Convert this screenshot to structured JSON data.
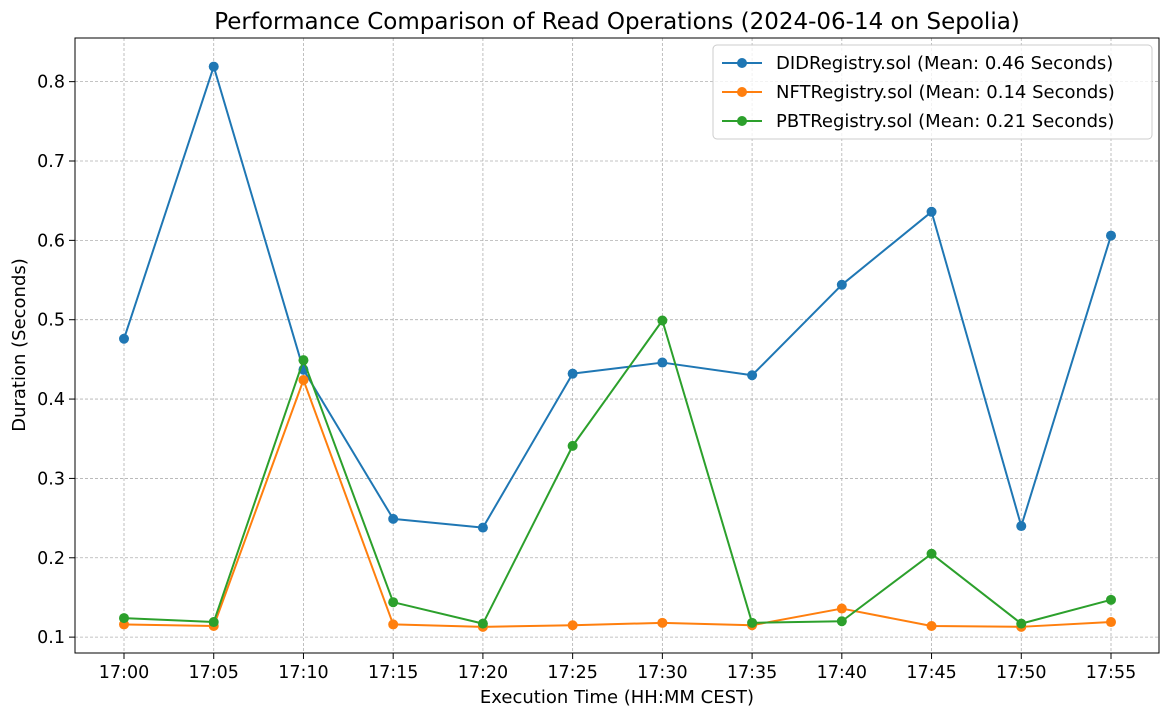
{
  "chart_data": {
    "type": "line",
    "title": "Performance Comparison of Read Operations (2024-06-14 on Sepolia)",
    "xlabel": "Execution Time (HH:MM CEST)",
    "ylabel": "Duration (Seconds)",
    "categories": [
      "17:00",
      "17:05",
      "17:10",
      "17:15",
      "17:20",
      "17:25",
      "17:30",
      "17:35",
      "17:40",
      "17:45",
      "17:50",
      "17:55"
    ],
    "ylim": [
      0.08,
      0.855
    ],
    "yticks": [
      0.1,
      0.2,
      0.3,
      0.4,
      0.5,
      0.6,
      0.7,
      0.8
    ],
    "ytick_labels": [
      "0.1",
      "0.2",
      "0.3",
      "0.4",
      "0.5",
      "0.6",
      "0.7",
      "0.8"
    ],
    "grid": true,
    "legend_position": "top-right",
    "series": [
      {
        "name": "DIDRegistry.sol (Mean: 0.46 Seconds)",
        "color": "#1f77b4",
        "values": [
          0.476,
          0.819,
          0.437,
          0.249,
          0.238,
          0.432,
          0.446,
          0.43,
          0.544,
          0.636,
          0.24,
          0.606
        ]
      },
      {
        "name": "NFTRegistry.sol (Mean: 0.14 Seconds)",
        "color": "#ff7f0e",
        "values": [
          0.116,
          0.114,
          0.424,
          0.116,
          0.113,
          0.115,
          0.118,
          0.115,
          0.136,
          0.114,
          0.113,
          0.119
        ]
      },
      {
        "name": "PBTRegistry.sol (Mean: 0.21 Seconds)",
        "color": "#2ca02c",
        "values": [
          0.124,
          0.119,
          0.449,
          0.144,
          0.117,
          0.341,
          0.499,
          0.118,
          0.12,
          0.205,
          0.117,
          0.147
        ]
      }
    ]
  }
}
